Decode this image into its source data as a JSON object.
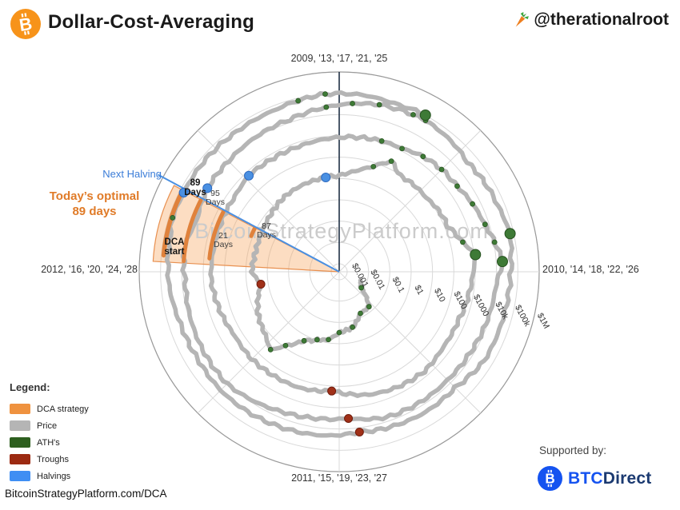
{
  "header": {
    "title": "Dollar-Cost-Averaging",
    "handle": "@therationalroot"
  },
  "chart": {
    "year_labels": {
      "top": "2009, '13, '17, '21, '25",
      "right": "2010, '14, '18, '22, '26",
      "bottom": "2011, '15, '19, '23, '27",
      "left": "2012, '16, '20, '24, '28"
    },
    "annotations": {
      "next_halving": "Next Halving",
      "today_optimal_1": "Today’s optimal",
      "today_optimal_2": "89 days",
      "dca_start_1": "DCA",
      "dca_start_2": "start",
      "watermark": "BitcoinStrategyPlatform.com"
    }
  },
  "legend": {
    "heading": "Legend:",
    "items": [
      {
        "label": "DCA strategy",
        "color": "#ef923f"
      },
      {
        "label": "Price",
        "color": "#b5b5b5"
      },
      {
        "label": "ATH's",
        "color": "#2e5f1f"
      },
      {
        "label": "Troughs",
        "color": "#9c2a12"
      },
      {
        "label": "Halvings",
        "color": "#3f8ef3"
      }
    ]
  },
  "footer": {
    "url": "BitcoinStrategyPlatform.com/DCA",
    "supported_by": "Supported by:",
    "sponsor_bold": "BTC",
    "sponsor_rest": "Direct"
  },
  "chart_data": {
    "type": "line",
    "subtype": "polar_log_spiral",
    "title": "Bitcoin price spiral, one turn = 4-year halving cycle",
    "angular_axis": {
      "start_year": 2009,
      "years_per_turn": 4,
      "clockwise_from_top": true
    },
    "radial_axis": {
      "scale": "log",
      "min": 0.001,
      "max": 1000000,
      "ticks": [
        {
          "label": "$0.001",
          "value": 0.001
        },
        {
          "label": "$0.01",
          "value": 0.01
        },
        {
          "label": "$0.1",
          "value": 0.1
        },
        {
          "label": "$1",
          "value": 1
        },
        {
          "label": "$10",
          "value": 10
        },
        {
          "label": "$100",
          "value": 100
        },
        {
          "label": "$1000",
          "value": 1000
        },
        {
          "label": "$10k",
          "value": 10000
        },
        {
          "label": "$100k",
          "value": 100000
        },
        {
          "label": "$1M",
          "value": 1000000
        }
      ]
    },
    "price_series": [
      [
        2010.25,
        0.005
      ],
      [
        2010.4,
        0.008
      ],
      [
        2010.55,
        0.06
      ],
      [
        2010.7,
        0.065
      ],
      [
        2010.85,
        0.2
      ],
      [
        2011.0,
        0.3
      ],
      [
        2011.1,
        0.7
      ],
      [
        2011.2,
        0.95
      ],
      [
        2011.3,
        1.8
      ],
      [
        2011.4,
        8
      ],
      [
        2011.46,
        31
      ],
      [
        2011.55,
        15
      ],
      [
        2011.7,
        8
      ],
      [
        2011.8,
        4.2
      ],
      [
        2011.9,
        2.2
      ],
      [
        2012.0,
        5.2
      ],
      [
        2012.15,
        4.5
      ],
      [
        2012.3,
        4.9
      ],
      [
        2012.45,
        6.6
      ],
      [
        2012.6,
        9.5
      ],
      [
        2012.75,
        11.2
      ],
      [
        2012.91,
        12.4
      ],
      [
        2013.0,
        13.5
      ],
      [
        2013.1,
        25
      ],
      [
        2013.2,
        65
      ],
      [
        2013.28,
        230
      ],
      [
        2013.36,
        90
      ],
      [
        2013.45,
        100
      ],
      [
        2013.55,
        97
      ],
      [
        2013.65,
        128
      ],
      [
        2013.75,
        140
      ],
      [
        2013.85,
        380
      ],
      [
        2013.92,
        1150
      ],
      [
        2014.0,
        810
      ],
      [
        2014.1,
        630
      ],
      [
        2014.25,
        455
      ],
      [
        2014.4,
        445
      ],
      [
        2014.55,
        590
      ],
      [
        2014.7,
        485
      ],
      [
        2014.85,
        360
      ],
      [
        2015.04,
        170
      ],
      [
        2015.2,
        235
      ],
      [
        2015.35,
        244
      ],
      [
        2015.5,
        262
      ],
      [
        2015.65,
        232
      ],
      [
        2015.8,
        320
      ],
      [
        2015.95,
        432
      ],
      [
        2016.1,
        412
      ],
      [
        2016.25,
        422
      ],
      [
        2016.4,
        455
      ],
      [
        2016.52,
        650
      ],
      [
        2016.65,
        605
      ],
      [
        2016.8,
        635
      ],
      [
        2016.95,
        790
      ],
      [
        2017.1,
        1010
      ],
      [
        2017.2,
        1190
      ],
      [
        2017.3,
        1300
      ],
      [
        2017.4,
        2050
      ],
      [
        2017.5,
        2600
      ],
      [
        2017.6,
        2880
      ],
      [
        2017.7,
        4350
      ],
      [
        2017.8,
        6500
      ],
      [
        2017.88,
        11000
      ],
      [
        2017.96,
        19500
      ],
      [
        2018.05,
        10100
      ],
      [
        2018.2,
        8500
      ],
      [
        2018.35,
        7000
      ],
      [
        2018.5,
        6400
      ],
      [
        2018.65,
        6700
      ],
      [
        2018.8,
        6400
      ],
      [
        2018.96,
        3300
      ],
      [
        2019.1,
        3850
      ],
      [
        2019.25,
        5250
      ],
      [
        2019.4,
        8600
      ],
      [
        2019.5,
        11500
      ],
      [
        2019.65,
        10100
      ],
      [
        2019.8,
        8500
      ],
      [
        2019.95,
        7200
      ],
      [
        2020.1,
        9500
      ],
      [
        2020.22,
        5300
      ],
      [
        2020.36,
        8800
      ],
      [
        2020.5,
        9200
      ],
      [
        2020.65,
        11500
      ],
      [
        2020.8,
        13600
      ],
      [
        2020.95,
        23500
      ],
      [
        2021.05,
        35000
      ],
      [
        2021.15,
        48500
      ],
      [
        2021.28,
        59000
      ],
      [
        2021.33,
        63000
      ],
      [
        2021.45,
        50000
      ],
      [
        2021.55,
        34500
      ],
      [
        2021.65,
        42500
      ],
      [
        2021.75,
        48500
      ],
      [
        2021.86,
        68000
      ],
      [
        2021.95,
        51000
      ],
      [
        2022.05,
        43500
      ],
      [
        2022.2,
        40500
      ],
      [
        2022.35,
        40000
      ],
      [
        2022.5,
        20500
      ],
      [
        2022.65,
        22500
      ],
      [
        2022.8,
        19500
      ],
      [
        2022.92,
        16000
      ],
      [
        2023.05,
        21500
      ],
      [
        2023.2,
        25000
      ],
      [
        2023.35,
        29000
      ],
      [
        2023.5,
        30500
      ],
      [
        2023.65,
        26200
      ],
      [
        2023.8,
        28500
      ],
      [
        2023.95,
        42500
      ],
      [
        2024.1,
        48500
      ],
      [
        2024.2,
        68500
      ],
      [
        2024.3,
        64000
      ],
      [
        2024.45,
        64500
      ],
      [
        2024.6,
        58500
      ],
      [
        2024.75,
        61500
      ],
      [
        2024.85,
        75500
      ],
      [
        2024.95,
        98000
      ],
      [
        2025.1,
        97000
      ],
      [
        2025.2,
        85000
      ],
      [
        2025.32,
        103000
      ]
    ],
    "halvings": [
      {
        "t": 2012.91,
        "p": 12.4
      },
      {
        "t": 2016.52,
        "p": 650
      },
      {
        "t": 2020.36,
        "p": 8800
      },
      {
        "t": 2024.3,
        "p": 64000
      }
    ],
    "troughs": [
      {
        "t": 2011.9,
        "p": 2.2
      },
      {
        "t": 2015.04,
        "p": 170
      },
      {
        "t": 2018.96,
        "p": 3300
      },
      {
        "t": 2022.92,
        "p": 16000
      }
    ],
    "major_aths": [
      {
        "t": 2013.92,
        "p": 1150
      },
      {
        "t": 2017.96,
        "p": 19500
      },
      {
        "t": 2021.86,
        "p": 68000
      },
      {
        "t": 2025.32,
        "p": 103000
      }
    ],
    "dca": {
      "next_halving_deg": 297.3,
      "wedge_from_deg": 273.2,
      "wedge_to_deg": 297.6,
      "today_optimal_days": 89
    },
    "dca_arcs": [
      {
        "days": 89,
        "price_level": 78000,
        "label_line1": "89",
        "label_line2": "Days",
        "emphasis": true
      },
      {
        "days": 95,
        "price_level": 8500,
        "label_line1": "95",
        "label_line2": "Days",
        "emphasis": false
      },
      {
        "days": 87,
        "price_level": 550,
        "label_line1": "87",
        "label_line2": "Days",
        "emphasis": false
      },
      {
        "days": 21,
        "price_level": 12,
        "label_line1": "21",
        "label_line2": "Days",
        "emphasis": false
      }
    ],
    "colors": {
      "price": "#b5b5b5",
      "ath": "#3e7a36",
      "ath_stroke": "#26511f",
      "trough": "#a03018",
      "trough_stroke": "#701c0c",
      "halving": "#4a90e2",
      "halving_stroke": "#2d6ac0",
      "dca_fill": "rgba(246,166,95,0.38)",
      "dca_edge": "#e89050",
      "dca_arc": "#e0823c",
      "grid": "#d9d9d9",
      "outer_ring": "#9a9a9a",
      "north_axis": "#1f3044",
      "next_halving_line": "#4a90e2",
      "watermark": "#cbcbcb",
      "tick_text": "#333333"
    }
  }
}
